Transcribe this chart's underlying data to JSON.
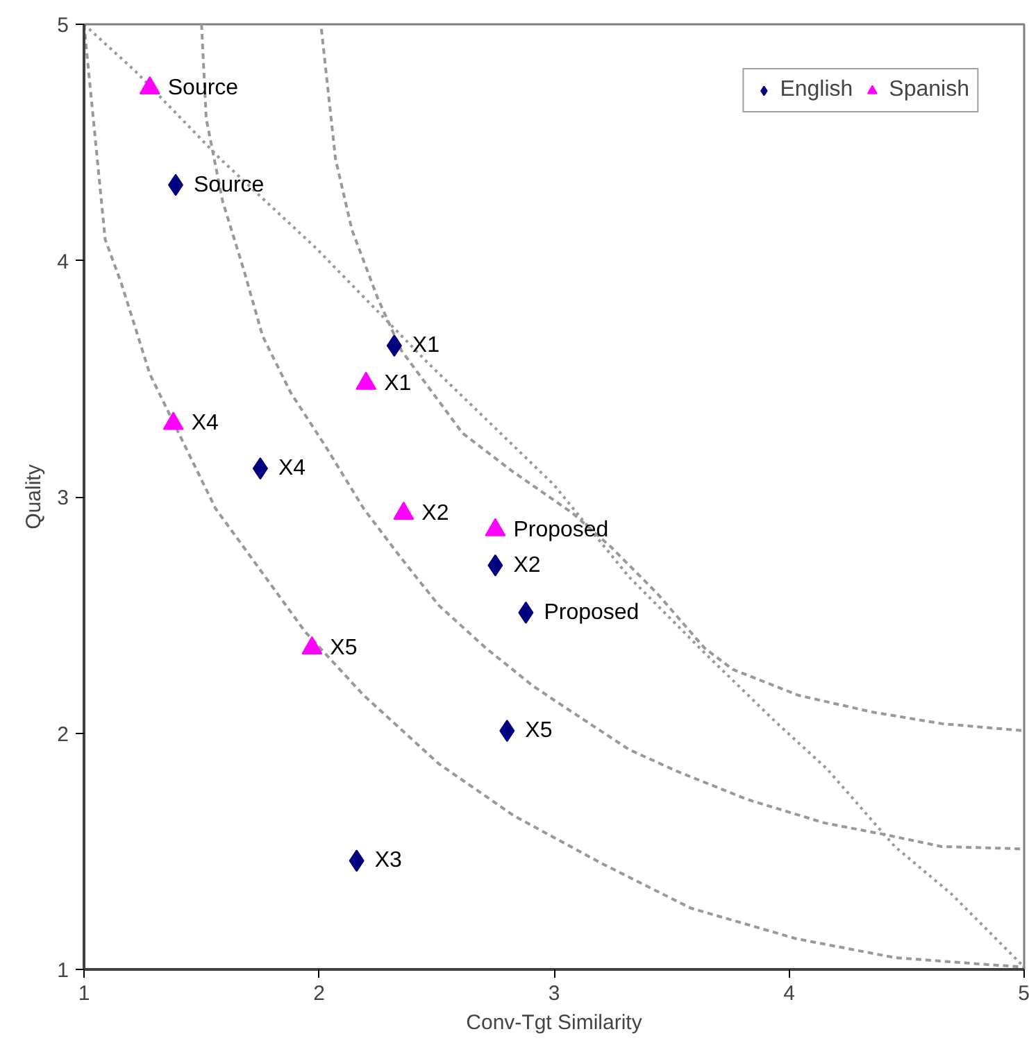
{
  "chart_data": {
    "type": "scatter",
    "xlabel": "Conv-Tgt Similarity",
    "ylabel": "Quality",
    "xlim": [
      1,
      5
    ],
    "ylim": [
      1,
      5
    ],
    "xticks": [
      1,
      2,
      3,
      4,
      5
    ],
    "yticks": [
      1,
      2,
      3,
      4,
      5
    ],
    "grid": false,
    "legend": "top right",
    "series": [
      {
        "type": "line",
        "color": "#999999",
        "line_style": "dashed",
        "marker": "none",
        "x": [
          1.0,
          1.09,
          1.16,
          1.28,
          1.56,
          1.67,
          1.94,
          2.19,
          2.51,
          2.83,
          3.2,
          3.58,
          4.03,
          4.45,
          4.85,
          5.0
        ],
        "values": [
          5.0,
          4.09,
          3.9,
          3.52,
          2.95,
          2.8,
          2.43,
          2.16,
          1.87,
          1.65,
          1.45,
          1.26,
          1.13,
          1.05,
          1.02,
          1.01
        ]
      },
      {
        "type": "line",
        "color": "#999999",
        "line_style": "dashed",
        "marker": "none",
        "x": [
          1.5,
          1.52,
          1.59,
          1.68,
          1.76,
          1.88,
          2.03,
          2.19,
          2.35,
          2.51,
          2.71,
          2.91,
          3.03,
          3.32,
          3.52,
          3.82,
          4.15,
          4.41,
          4.65,
          5.0
        ],
        "values": [
          5.0,
          4.6,
          4.25,
          3.96,
          3.68,
          3.44,
          3.21,
          2.95,
          2.74,
          2.54,
          2.36,
          2.2,
          2.12,
          1.93,
          1.84,
          1.72,
          1.62,
          1.57,
          1.52,
          1.51
        ]
      },
      {
        "type": "line",
        "color": "#999999",
        "line_style": "dashed",
        "marker": "none",
        "x": [
          2.01,
          2.07,
          2.14,
          2.25,
          2.35,
          2.61,
          2.82,
          3.08,
          3.24,
          3.44,
          3.64,
          3.76,
          4.04,
          4.35,
          4.65,
          5.0
        ],
        "values": [
          4.98,
          4.43,
          4.13,
          3.84,
          3.62,
          3.27,
          3.11,
          2.93,
          2.79,
          2.59,
          2.36,
          2.27,
          2.16,
          2.09,
          2.04,
          2.01
        ]
      },
      {
        "type": "line",
        "color": "#999999",
        "line_style": "dotted",
        "marker": "none",
        "x": [
          1.0,
          1.22,
          1.58,
          1.99,
          2.47,
          3.0,
          3.32,
          3.64,
          3.94,
          4.16,
          4.45,
          4.69,
          4.89,
          4.99
        ],
        "values": [
          5.0,
          4.8,
          4.43,
          4.05,
          3.56,
          3.05,
          2.66,
          2.34,
          2.05,
          1.85,
          1.52,
          1.32,
          1.12,
          1.02
        ]
      },
      {
        "name": "English",
        "color": "#000080",
        "marker": "diamond",
        "x": [
          1.39,
          2.32,
          1.75,
          2.75,
          2.88,
          2.8,
          2.16
        ],
        "values": [
          4.32,
          3.64,
          3.12,
          2.71,
          2.51,
          2.01,
          1.46
        ]
      },
      {
        "name": "Spanish",
        "color": "#ff00ff",
        "marker": "triangle",
        "x": [
          1.28,
          2.2,
          1.38,
          2.36,
          2.75,
          1.97
        ],
        "values": [
          4.73,
          3.48,
          3.31,
          2.93,
          2.86,
          2.36
        ]
      }
    ],
    "annotations": [
      {
        "text": "Source",
        "x": 1.39,
        "y": 4.32
      },
      {
        "text": "X1",
        "x": 2.32,
        "y": 3.64
      },
      {
        "text": "X4",
        "x": 1.75,
        "y": 3.12
      },
      {
        "text": "X2",
        "x": 2.75,
        "y": 2.71
      },
      {
        "text": "Proposed",
        "x": 2.88,
        "y": 2.51
      },
      {
        "text": "X5",
        "x": 2.8,
        "y": 2.01
      },
      {
        "text": "X3",
        "x": 2.16,
        "y": 1.46
      },
      {
        "text": "Source",
        "x": 1.28,
        "y": 4.73
      },
      {
        "text": "X1",
        "x": 2.2,
        "y": 3.48
      },
      {
        "text": "X4",
        "x": 1.38,
        "y": 3.31
      },
      {
        "text": "X2",
        "x": 2.36,
        "y": 2.93
      },
      {
        "text": "Proposed",
        "x": 2.75,
        "y": 2.86
      },
      {
        "text": "X5",
        "x": 1.97,
        "y": 2.36
      }
    ]
  }
}
